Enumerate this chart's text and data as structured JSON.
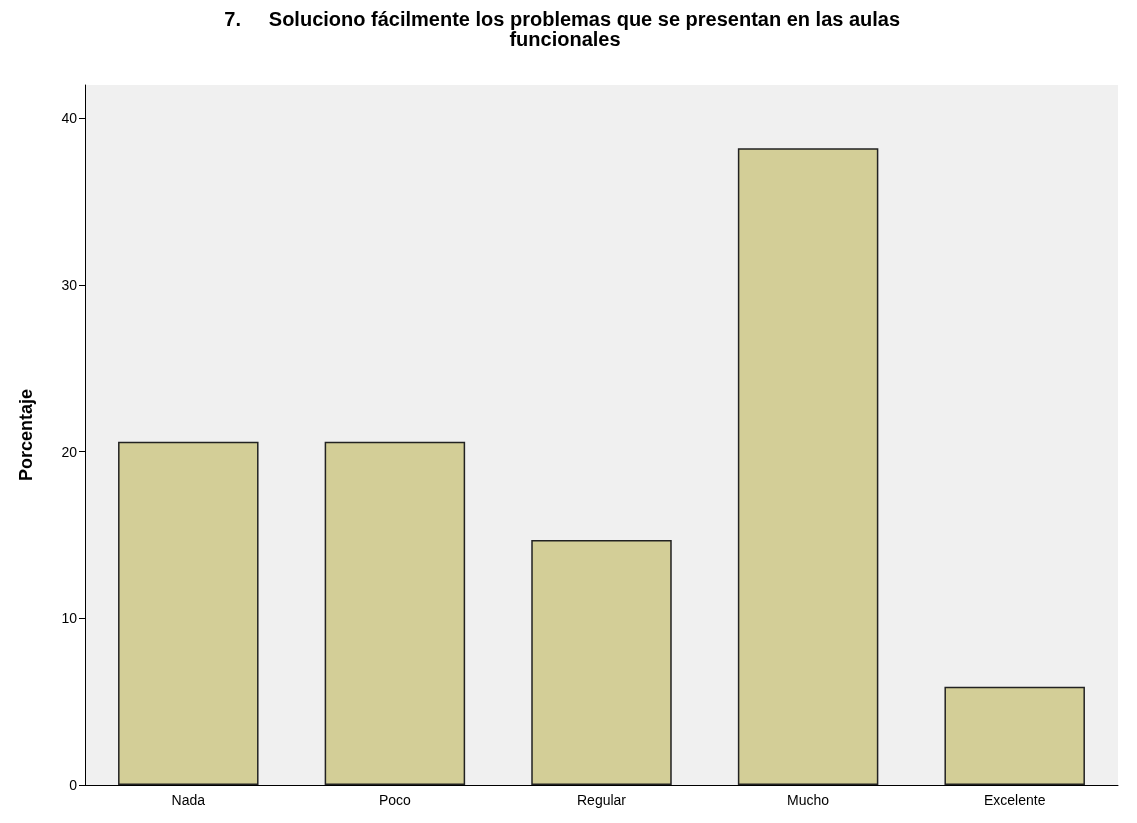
{
  "chart_data": {
    "type": "bar",
    "title": "7.     Soluciono fácilmente los problemas que se presentan en las aulas funcionales",
    "ylabel": "Porcentaje",
    "categories": [
      "Nada",
      "Poco",
      "Regular",
      "Mucho",
      "Excelente"
    ],
    "values": [
      20.6,
      20.6,
      14.7,
      38.2,
      5.9
    ],
    "color": "#d3ce97",
    "ylim": [
      0,
      42
    ],
    "yticks": [
      0,
      10,
      20,
      30,
      40
    ],
    "grid": false
  }
}
